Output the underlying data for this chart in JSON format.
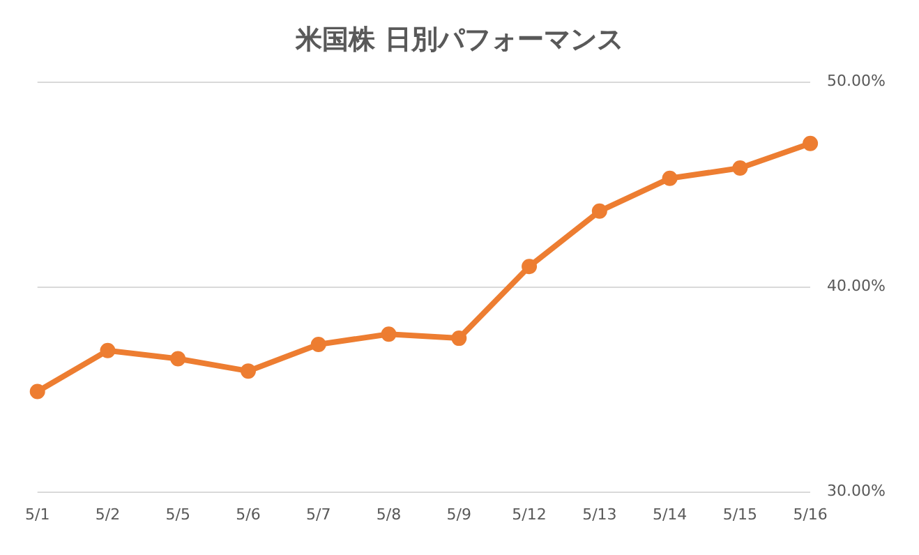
{
  "chart_data": {
    "type": "line",
    "title": "米国株 日別パフォーマンス",
    "categories": [
      "5/1",
      "5/2",
      "5/5",
      "5/6",
      "5/7",
      "5/8",
      "5/9",
      "5/12",
      "5/13",
      "5/14",
      "5/15",
      "5/16"
    ],
    "series": [
      {
        "color": "#ed7d31",
        "values": [
          34.9,
          36.9,
          36.5,
          35.9,
          37.2,
          37.7,
          37.5,
          41.0,
          43.7,
          45.3,
          45.8,
          47.0
        ]
      }
    ],
    "ylim": [
      30,
      50
    ],
    "yticks": [
      {
        "value": 30,
        "label": "30.00%"
      },
      {
        "value": 40,
        "label": "40.00%"
      },
      {
        "value": 50,
        "label": "50.00%"
      }
    ],
    "grid": "y",
    "legend": false,
    "marker": "circle",
    "line_style": "solid"
  }
}
